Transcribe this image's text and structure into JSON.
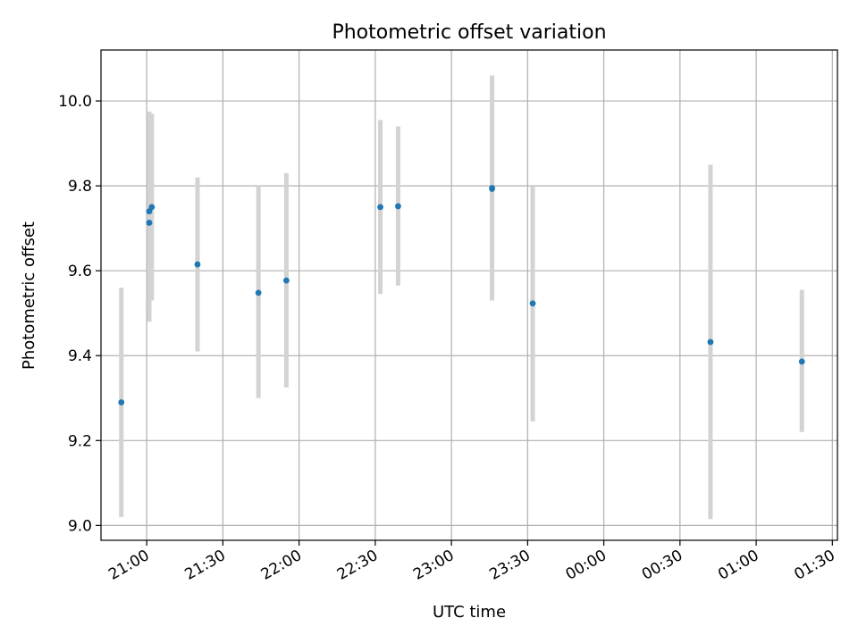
{
  "chart_data": {
    "type": "scatter",
    "title": "Photometric offset variation",
    "xlabel": "UTC time",
    "ylabel": "Photometric offset",
    "grid": true,
    "legend": "none",
    "colors": {
      "points": "#1f77b4",
      "errorbars": "#d3d3d3",
      "grid": "#b0b0b0",
      "axes": "#000000"
    },
    "xlim": [
      "20:42",
      "01:32"
    ],
    "ylim": [
      8.965,
      10.12
    ],
    "x_ticks": [
      "21:00",
      "21:30",
      "22:00",
      "22:30",
      "23:00",
      "23:30",
      "00:00",
      "00:30",
      "01:00",
      "01:30"
    ],
    "y_ticks": [
      "9.0",
      "9.2",
      "9.4",
      "9.6",
      "9.8",
      "10.0"
    ],
    "series": [
      {
        "points": [
          {
            "x": "20:50",
            "y": 9.29,
            "ylow": 9.02,
            "yhigh": 9.56
          },
          {
            "x": "21:01",
            "y": 9.713,
            "ylow": 9.48,
            "yhigh": 9.97
          },
          {
            "x": "21:01",
            "y": 9.74,
            "ylow": 9.5,
            "yhigh": 9.975
          },
          {
            "x": "21:02",
            "y": 9.75,
            "ylow": 9.53,
            "yhigh": 9.97
          },
          {
            "x": "21:20",
            "y": 9.615,
            "ylow": 9.41,
            "yhigh": 9.82
          },
          {
            "x": "21:44",
            "y": 9.548,
            "ylow": 9.3,
            "yhigh": 9.8
          },
          {
            "x": "21:55",
            "y": 9.577,
            "ylow": 9.325,
            "yhigh": 9.83
          },
          {
            "x": "22:32",
            "y": 9.75,
            "ylow": 9.545,
            "yhigh": 9.955
          },
          {
            "x": "22:39",
            "y": 9.752,
            "ylow": 9.565,
            "yhigh": 9.94
          },
          {
            "x": "23:16",
            "y": 9.793,
            "ylow": 9.53,
            "yhigh": 10.06
          },
          {
            "x": "23:16",
            "y": 9.795,
            "ylow": 9.55,
            "yhigh": 10.04
          },
          {
            "x": "23:32",
            "y": 9.523,
            "ylow": 9.245,
            "yhigh": 9.8
          },
          {
            "x": "00:42",
            "y": 9.432,
            "ylow": 9.015,
            "yhigh": 9.85
          },
          {
            "x": "01:18",
            "y": 9.386,
            "ylow": 9.22,
            "yhigh": 9.555
          }
        ]
      }
    ]
  }
}
